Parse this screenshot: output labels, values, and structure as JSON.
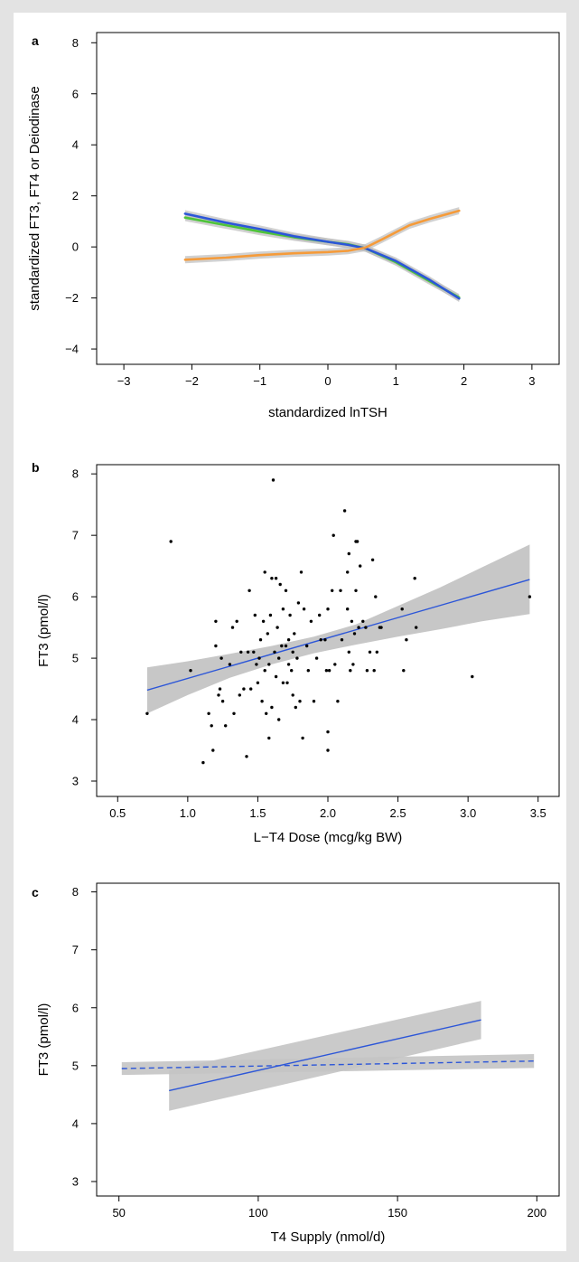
{
  "chart_data": [
    {
      "panel_label": "a",
      "type": "line",
      "xlabel": "standardized lnTSH",
      "ylabel": "standardized FT3, FT4 or Deiodinase",
      "xlim": [
        -3.4,
        3.4
      ],
      "ylim": [
        -4.6,
        8.4
      ],
      "xticks": [
        -3,
        -2,
        -1,
        0,
        1,
        2,
        3
      ],
      "yticks": [
        -4,
        -2,
        0,
        2,
        4,
        6,
        8
      ],
      "tick_labels_x": [
        "−3",
        "−2",
        "−1",
        "0",
        "1",
        "2",
        "3"
      ],
      "tick_labels_y": [
        "−4",
        "−2",
        "0",
        "2",
        "4",
        "6",
        "8"
      ],
      "confidence_band": true,
      "series": [
        {
          "color": "#4ec43a",
          "x": [
            -2.1,
            -1.5,
            -1,
            -0.5,
            0,
            0.3,
            0.55,
            1,
            1.5,
            1.93
          ],
          "y": [
            1.15,
            0.85,
            0.6,
            0.38,
            0.2,
            0.1,
            -0.05,
            -0.6,
            -1.35,
            -1.98
          ]
        },
        {
          "color": "#2c56d8",
          "x": [
            -2.1,
            -1.5,
            -1,
            -0.5,
            0,
            0.3,
            0.55,
            1,
            1.5,
            1.93
          ],
          "y": [
            1.3,
            0.95,
            0.7,
            0.42,
            0.2,
            0.08,
            -0.05,
            -0.55,
            -1.3,
            -2.02
          ]
        },
        {
          "color": "#f59b3a",
          "x": [
            -2.1,
            -1.5,
            -1,
            -0.5,
            0,
            0.3,
            0.55,
            0.8,
            1.2,
            1.5,
            1.93
          ],
          "y": [
            -0.5,
            -0.42,
            -0.32,
            -0.25,
            -0.2,
            -0.15,
            -0.03,
            0.3,
            0.85,
            1.1,
            1.42
          ]
        }
      ]
    },
    {
      "panel_label": "b",
      "type": "scatter",
      "xlabel": "L−T4 Dose (mcg/kg BW)",
      "ylabel": "FT3 (pmol/l)",
      "xlim": [
        0.35,
        3.65
      ],
      "ylim": [
        2.75,
        8.15
      ],
      "xticks": [
        0.5,
        1.0,
        1.5,
        2.0,
        2.5,
        3.0,
        3.5
      ],
      "yticks": [
        3,
        4,
        5,
        6,
        7,
        8
      ],
      "tick_labels_x": [
        "0.5",
        "1.0",
        "1.5",
        "2.0",
        "2.5",
        "3.0",
        "3.5"
      ],
      "tick_labels_y": [
        "3",
        "4",
        "5",
        "6",
        "7",
        "8"
      ],
      "regression": {
        "color": "#2c56d8",
        "x": [
          0.71,
          3.44
        ],
        "y": [
          4.48,
          6.28
        ]
      },
      "band": {
        "x": [
          0.71,
          1.0,
          1.3,
          1.6,
          1.9,
          2.2,
          2.5,
          2.8,
          3.1,
          3.44
        ],
        "upper": [
          4.85,
          4.95,
          5.07,
          5.2,
          5.35,
          5.55,
          5.85,
          6.15,
          6.48,
          6.85
        ],
        "lower": [
          4.1,
          4.4,
          4.68,
          4.9,
          5.08,
          5.22,
          5.35,
          5.47,
          5.6,
          5.72
        ]
      },
      "points": [
        [
          0.71,
          4.1
        ],
        [
          0.88,
          6.9
        ],
        [
          1.02,
          4.8
        ],
        [
          1.11,
          3.3
        ],
        [
          1.15,
          4.1
        ],
        [
          1.17,
          3.9
        ],
        [
          1.18,
          3.5
        ],
        [
          1.2,
          5.6
        ],
        [
          1.2,
          5.2
        ],
        [
          1.22,
          4.4
        ],
        [
          1.23,
          4.5
        ],
        [
          1.24,
          5.0
        ],
        [
          1.25,
          4.3
        ],
        [
          1.27,
          3.9
        ],
        [
          1.3,
          4.9
        ],
        [
          1.32,
          5.5
        ],
        [
          1.33,
          4.1
        ],
        [
          1.35,
          5.6
        ],
        [
          1.37,
          4.4
        ],
        [
          1.38,
          5.1
        ],
        [
          1.4,
          4.5
        ],
        [
          1.42,
          3.4
        ],
        [
          1.43,
          5.1
        ],
        [
          1.44,
          6.1
        ],
        [
          1.45,
          4.5
        ],
        [
          1.47,
          5.1
        ],
        [
          1.48,
          5.7
        ],
        [
          1.49,
          4.9
        ],
        [
          1.5,
          4.6
        ],
        [
          1.51,
          5.0
        ],
        [
          1.52,
          5.3
        ],
        [
          1.53,
          4.3
        ],
        [
          1.54,
          5.6
        ],
        [
          1.55,
          6.4
        ],
        [
          1.55,
          4.8
        ],
        [
          1.56,
          4.1
        ],
        [
          1.57,
          5.4
        ],
        [
          1.58,
          3.7
        ],
        [
          1.58,
          4.9
        ],
        [
          1.59,
          5.7
        ],
        [
          1.6,
          6.3
        ],
        [
          1.6,
          4.2
        ],
        [
          1.61,
          7.9
        ],
        [
          1.62,
          5.1
        ],
        [
          1.63,
          4.7
        ],
        [
          1.63,
          6.3
        ],
        [
          1.64,
          5.5
        ],
        [
          1.65,
          4.0
        ],
        [
          1.65,
          5.0
        ],
        [
          1.66,
          6.2
        ],
        [
          1.67,
          5.2
        ],
        [
          1.68,
          4.6
        ],
        [
          1.68,
          5.8
        ],
        [
          1.7,
          6.1
        ],
        [
          1.7,
          5.2
        ],
        [
          1.71,
          4.6
        ],
        [
          1.72,
          5.3
        ],
        [
          1.72,
          4.9
        ],
        [
          1.73,
          5.7
        ],
        [
          1.74,
          4.8
        ],
        [
          1.75,
          5.1
        ],
        [
          1.75,
          4.4
        ],
        [
          1.76,
          5.4
        ],
        [
          1.77,
          4.2
        ],
        [
          1.78,
          5.0
        ],
        [
          1.79,
          5.9
        ],
        [
          1.8,
          4.3
        ],
        [
          1.81,
          6.4
        ],
        [
          1.82,
          3.7
        ],
        [
          1.83,
          5.8
        ],
        [
          1.85,
          5.2
        ],
        [
          1.86,
          4.8
        ],
        [
          1.88,
          5.6
        ],
        [
          1.9,
          4.3
        ],
        [
          1.92,
          5.0
        ],
        [
          1.94,
          5.7
        ],
        [
          1.95,
          5.3
        ],
        [
          1.98,
          5.3
        ],
        [
          1.99,
          4.8
        ],
        [
          2.0,
          5.8
        ],
        [
          2.0,
          3.5
        ],
        [
          2.0,
          3.8
        ],
        [
          2.01,
          4.8
        ],
        [
          2.03,
          6.1
        ],
        [
          2.04,
          7.0
        ],
        [
          2.05,
          4.9
        ],
        [
          2.07,
          4.3
        ],
        [
          2.09,
          6.1
        ],
        [
          2.1,
          5.3
        ],
        [
          2.12,
          7.4
        ],
        [
          2.14,
          5.8
        ],
        [
          2.14,
          6.4
        ],
        [
          2.15,
          5.1
        ],
        [
          2.15,
          6.7
        ],
        [
          2.16,
          4.8
        ],
        [
          2.17,
          5.6
        ],
        [
          2.18,
          4.9
        ],
        [
          2.19,
          5.4
        ],
        [
          2.2,
          6.9
        ],
        [
          2.2,
          6.1
        ],
        [
          2.21,
          6.9
        ],
        [
          2.22,
          5.5
        ],
        [
          2.23,
          6.5
        ],
        [
          2.25,
          5.6
        ],
        [
          2.27,
          5.5
        ],
        [
          2.28,
          4.8
        ],
        [
          2.3,
          5.1
        ],
        [
          2.32,
          6.6
        ],
        [
          2.33,
          4.8
        ],
        [
          2.34,
          6.0
        ],
        [
          2.35,
          5.1
        ],
        [
          2.37,
          5.5
        ],
        [
          2.38,
          5.5
        ],
        [
          2.53,
          5.8
        ],
        [
          2.54,
          4.8
        ],
        [
          2.56,
          5.3
        ],
        [
          2.62,
          6.3
        ],
        [
          2.63,
          5.5
        ],
        [
          3.03,
          4.7
        ],
        [
          3.44,
          6.0
        ]
      ]
    },
    {
      "panel_label": "c",
      "type": "line",
      "xlabel": "T4 Supply (nmol/d)",
      "ylabel": "FT3 (pmol/l)",
      "xlim": [
        42,
        208
      ],
      "ylim": [
        2.75,
        8.15
      ],
      "xticks": [
        50,
        100,
        150,
        200
      ],
      "yticks": [
        3,
        4,
        5,
        6,
        7,
        8
      ],
      "tick_labels_x": [
        "50",
        "100",
        "150",
        "200"
      ],
      "tick_labels_y": [
        "3",
        "4",
        "5",
        "6",
        "7",
        "8"
      ],
      "series": [
        {
          "color": "#2c56d8",
          "style": "solid",
          "x": [
            68,
            180
          ],
          "y": [
            4.57,
            5.79
          ],
          "band_upper": [
            4.92,
            6.12
          ],
          "band_lower": [
            4.22,
            5.46
          ]
        },
        {
          "color": "#2c56d8",
          "style": "dashed",
          "x": [
            51,
            199
          ],
          "y": [
            4.95,
            5.08
          ],
          "band_upper": [
            5.06,
            5.2
          ],
          "band_lower": [
            4.84,
            4.96
          ]
        }
      ]
    }
  ]
}
